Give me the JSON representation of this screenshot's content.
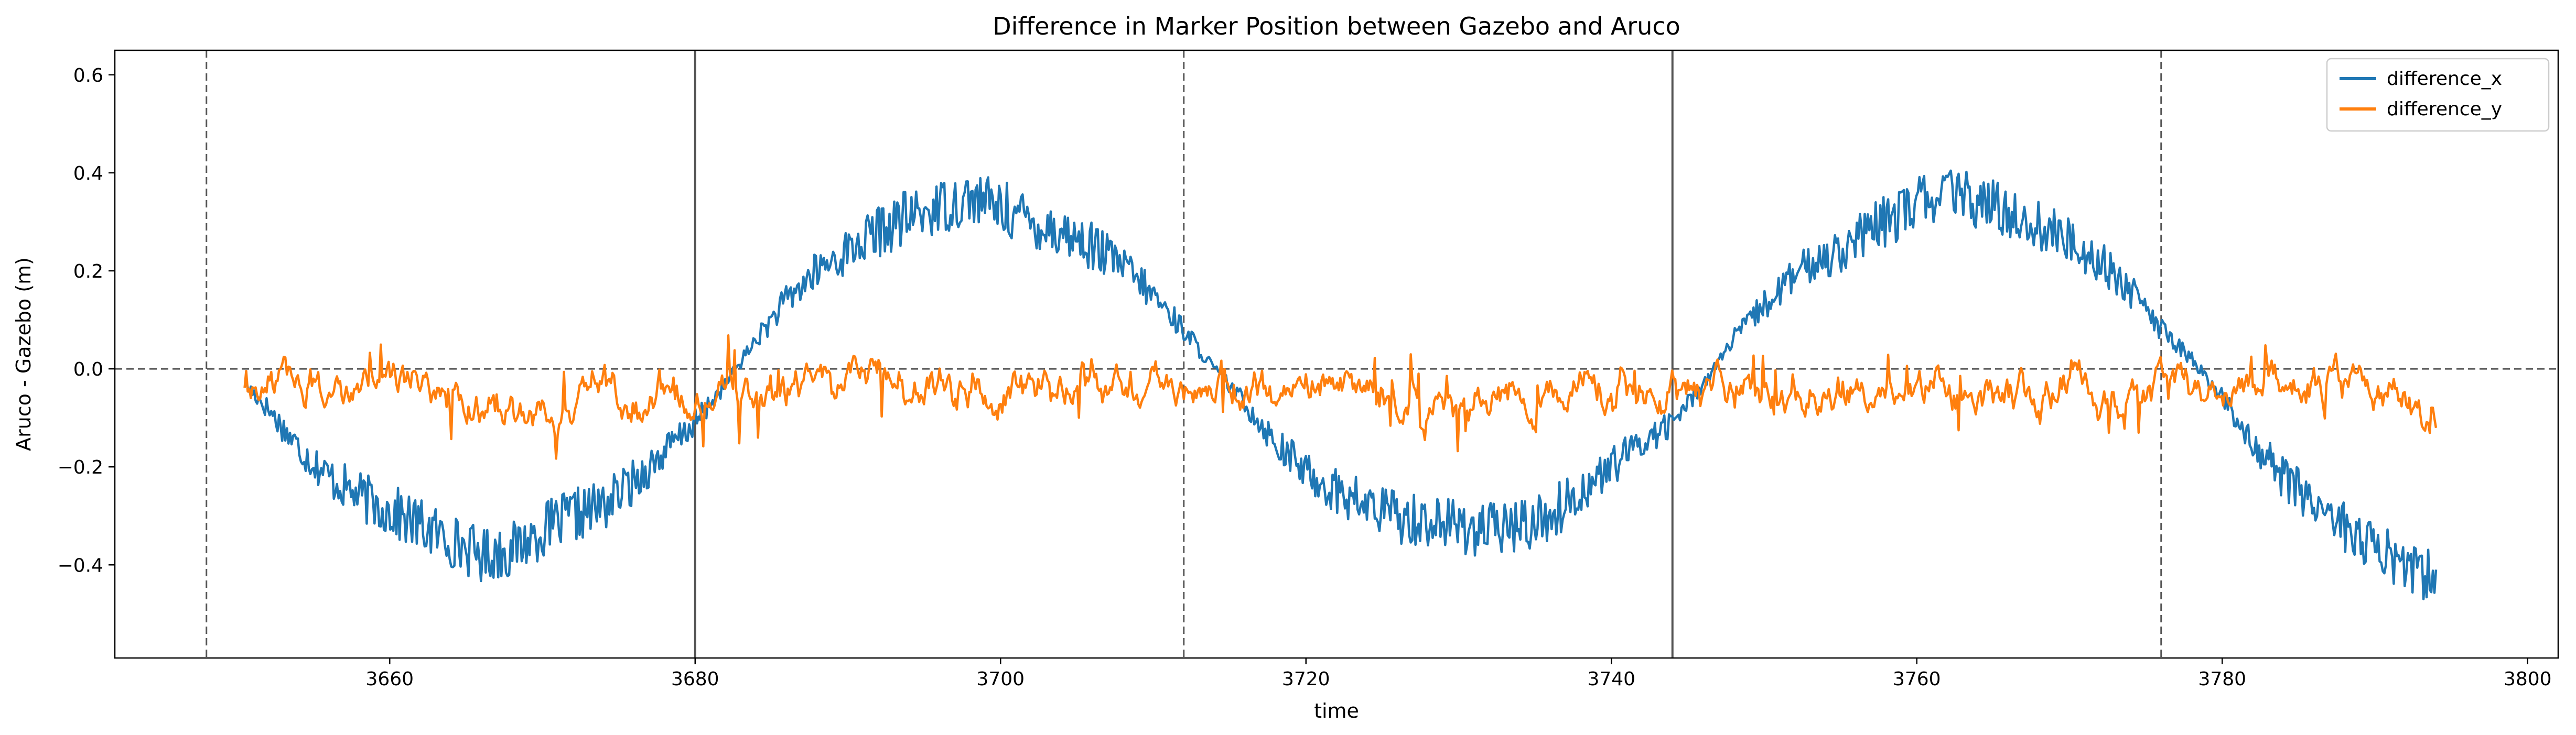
{
  "chart_data": {
    "type": "line",
    "title": "Difference in Marker Position between Gazebo and Aruco",
    "xlabel": "time",
    "ylabel": "Aruco - Gazebo (m)",
    "xlim": [
      3642,
      3802
    ],
    "ylim": [
      -0.59,
      0.65
    ],
    "xticks": [
      3660,
      3680,
      3700,
      3720,
      3740,
      3760,
      3780,
      3800
    ],
    "yticks": [
      -0.4,
      -0.2,
      0.0,
      0.2,
      0.4,
      0.6
    ],
    "grid": false,
    "legend_position": "top-right",
    "reference_lines": {
      "horizontal_dashed": [
        0.0
      ],
      "vertical_dashed": [
        3648,
        3712,
        3776
      ],
      "vertical_solid": [
        3680,
        3744
      ]
    },
    "series": [
      {
        "name": "difference_x",
        "color": "#1f77b4",
        "noise": 0.045,
        "points": [
          [
            3650.5,
            -0.03
          ],
          [
            3652,
            -0.08
          ],
          [
            3654,
            -0.16
          ],
          [
            3656,
            -0.22
          ],
          [
            3658,
            -0.26
          ],
          [
            3660,
            -0.29
          ],
          [
            3662,
            -0.32
          ],
          [
            3664,
            -0.35
          ],
          [
            3666,
            -0.38
          ],
          [
            3668,
            -0.37
          ],
          [
            3670,
            -0.33
          ],
          [
            3672,
            -0.3
          ],
          [
            3674,
            -0.28
          ],
          [
            3676,
            -0.23
          ],
          [
            3678,
            -0.17
          ],
          [
            3680,
            -0.11
          ],
          [
            3682,
            -0.03
          ],
          [
            3684,
            0.06
          ],
          [
            3686,
            0.14
          ],
          [
            3688,
            0.2
          ],
          [
            3690,
            0.24
          ],
          [
            3692,
            0.28
          ],
          [
            3694,
            0.31
          ],
          [
            3696,
            0.33
          ],
          [
            3698,
            0.35
          ],
          [
            3700,
            0.33
          ],
          [
            3702,
            0.3
          ],
          [
            3704,
            0.28
          ],
          [
            3706,
            0.25
          ],
          [
            3708,
            0.21
          ],
          [
            3710,
            0.15
          ],
          [
            3712,
            0.08
          ],
          [
            3714,
            0.0
          ],
          [
            3716,
            -0.07
          ],
          [
            3718,
            -0.15
          ],
          [
            3720,
            -0.21
          ],
          [
            3722,
            -0.25
          ],
          [
            3724,
            -0.28
          ],
          [
            3726,
            -0.3
          ],
          [
            3728,
            -0.31
          ],
          [
            3730,
            -0.32
          ],
          [
            3732,
            -0.33
          ],
          [
            3734,
            -0.32
          ],
          [
            3736,
            -0.3
          ],
          [
            3738,
            -0.25
          ],
          [
            3740,
            -0.2
          ],
          [
            3742,
            -0.15
          ],
          [
            3744,
            -0.11
          ],
          [
            3746,
            -0.03
          ],
          [
            3748,
            0.06
          ],
          [
            3750,
            0.13
          ],
          [
            3752,
            0.19
          ],
          [
            3754,
            0.23
          ],
          [
            3756,
            0.26
          ],
          [
            3758,
            0.3
          ],
          [
            3760,
            0.34
          ],
          [
            3762,
            0.36
          ],
          [
            3764,
            0.34
          ],
          [
            3766,
            0.32
          ],
          [
            3768,
            0.29
          ],
          [
            3770,
            0.26
          ],
          [
            3772,
            0.22
          ],
          [
            3774,
            0.16
          ],
          [
            3776,
            0.08
          ],
          [
            3778,
            0.02
          ],
          [
            3780,
            -0.06
          ],
          [
            3782,
            -0.15
          ],
          [
            3784,
            -0.22
          ],
          [
            3786,
            -0.27
          ],
          [
            3788,
            -0.32
          ],
          [
            3790,
            -0.37
          ],
          [
            3792,
            -0.4
          ],
          [
            3794,
            -0.43
          ]
        ]
      },
      {
        "name": "difference_y",
        "color": "#ff7f0e",
        "noise": 0.05,
        "points": [
          [
            3650.5,
            -0.03
          ],
          [
            3654,
            -0.02
          ],
          [
            3658,
            -0.03
          ],
          [
            3662,
            -0.04
          ],
          [
            3664,
            -0.06
          ],
          [
            3666,
            -0.08
          ],
          [
            3668,
            -0.07
          ],
          [
            3670,
            -0.1
          ],
          [
            3672,
            -0.08
          ],
          [
            3674,
            -0.06
          ],
          [
            3676,
            -0.08
          ],
          [
            3678,
            -0.05
          ],
          [
            3680,
            -0.05
          ],
          [
            3684,
            -0.04
          ],
          [
            3688,
            -0.03
          ],
          [
            3692,
            -0.03
          ],
          [
            3694,
            -0.04
          ],
          [
            3696,
            -0.03
          ],
          [
            3698,
            -0.04
          ],
          [
            3700,
            -0.07
          ],
          [
            3702,
            -0.05
          ],
          [
            3704,
            -0.06
          ],
          [
            3706,
            -0.04
          ],
          [
            3708,
            -0.05
          ],
          [
            3710,
            -0.04
          ],
          [
            3712,
            -0.04
          ],
          [
            3716,
            -0.04
          ],
          [
            3720,
            -0.05
          ],
          [
            3722,
            -0.03
          ],
          [
            3724,
            -0.06
          ],
          [
            3726,
            -0.05
          ],
          [
            3728,
            -0.08
          ],
          [
            3730,
            -0.06
          ],
          [
            3732,
            -0.09
          ],
          [
            3734,
            -0.05
          ],
          [
            3736,
            -0.07
          ],
          [
            3738,
            -0.04
          ],
          [
            3742,
            -0.04
          ],
          [
            3744,
            -0.05
          ],
          [
            3748,
            -0.05
          ],
          [
            3752,
            -0.05
          ],
          [
            3754,
            -0.04
          ],
          [
            3756,
            -0.06
          ],
          [
            3758,
            -0.04
          ],
          [
            3760,
            -0.07
          ],
          [
            3762,
            -0.03
          ],
          [
            3764,
            -0.06
          ],
          [
            3766,
            -0.05
          ],
          [
            3768,
            -0.06
          ],
          [
            3770,
            -0.04
          ],
          [
            3772,
            -0.06
          ],
          [
            3774,
            -0.04
          ],
          [
            3776,
            -0.04
          ],
          [
            3780,
            -0.03
          ],
          [
            3784,
            -0.03
          ],
          [
            3788,
            -0.04
          ],
          [
            3790,
            -0.05
          ],
          [
            3792,
            -0.07
          ],
          [
            3794,
            -0.09
          ]
        ]
      }
    ]
  }
}
